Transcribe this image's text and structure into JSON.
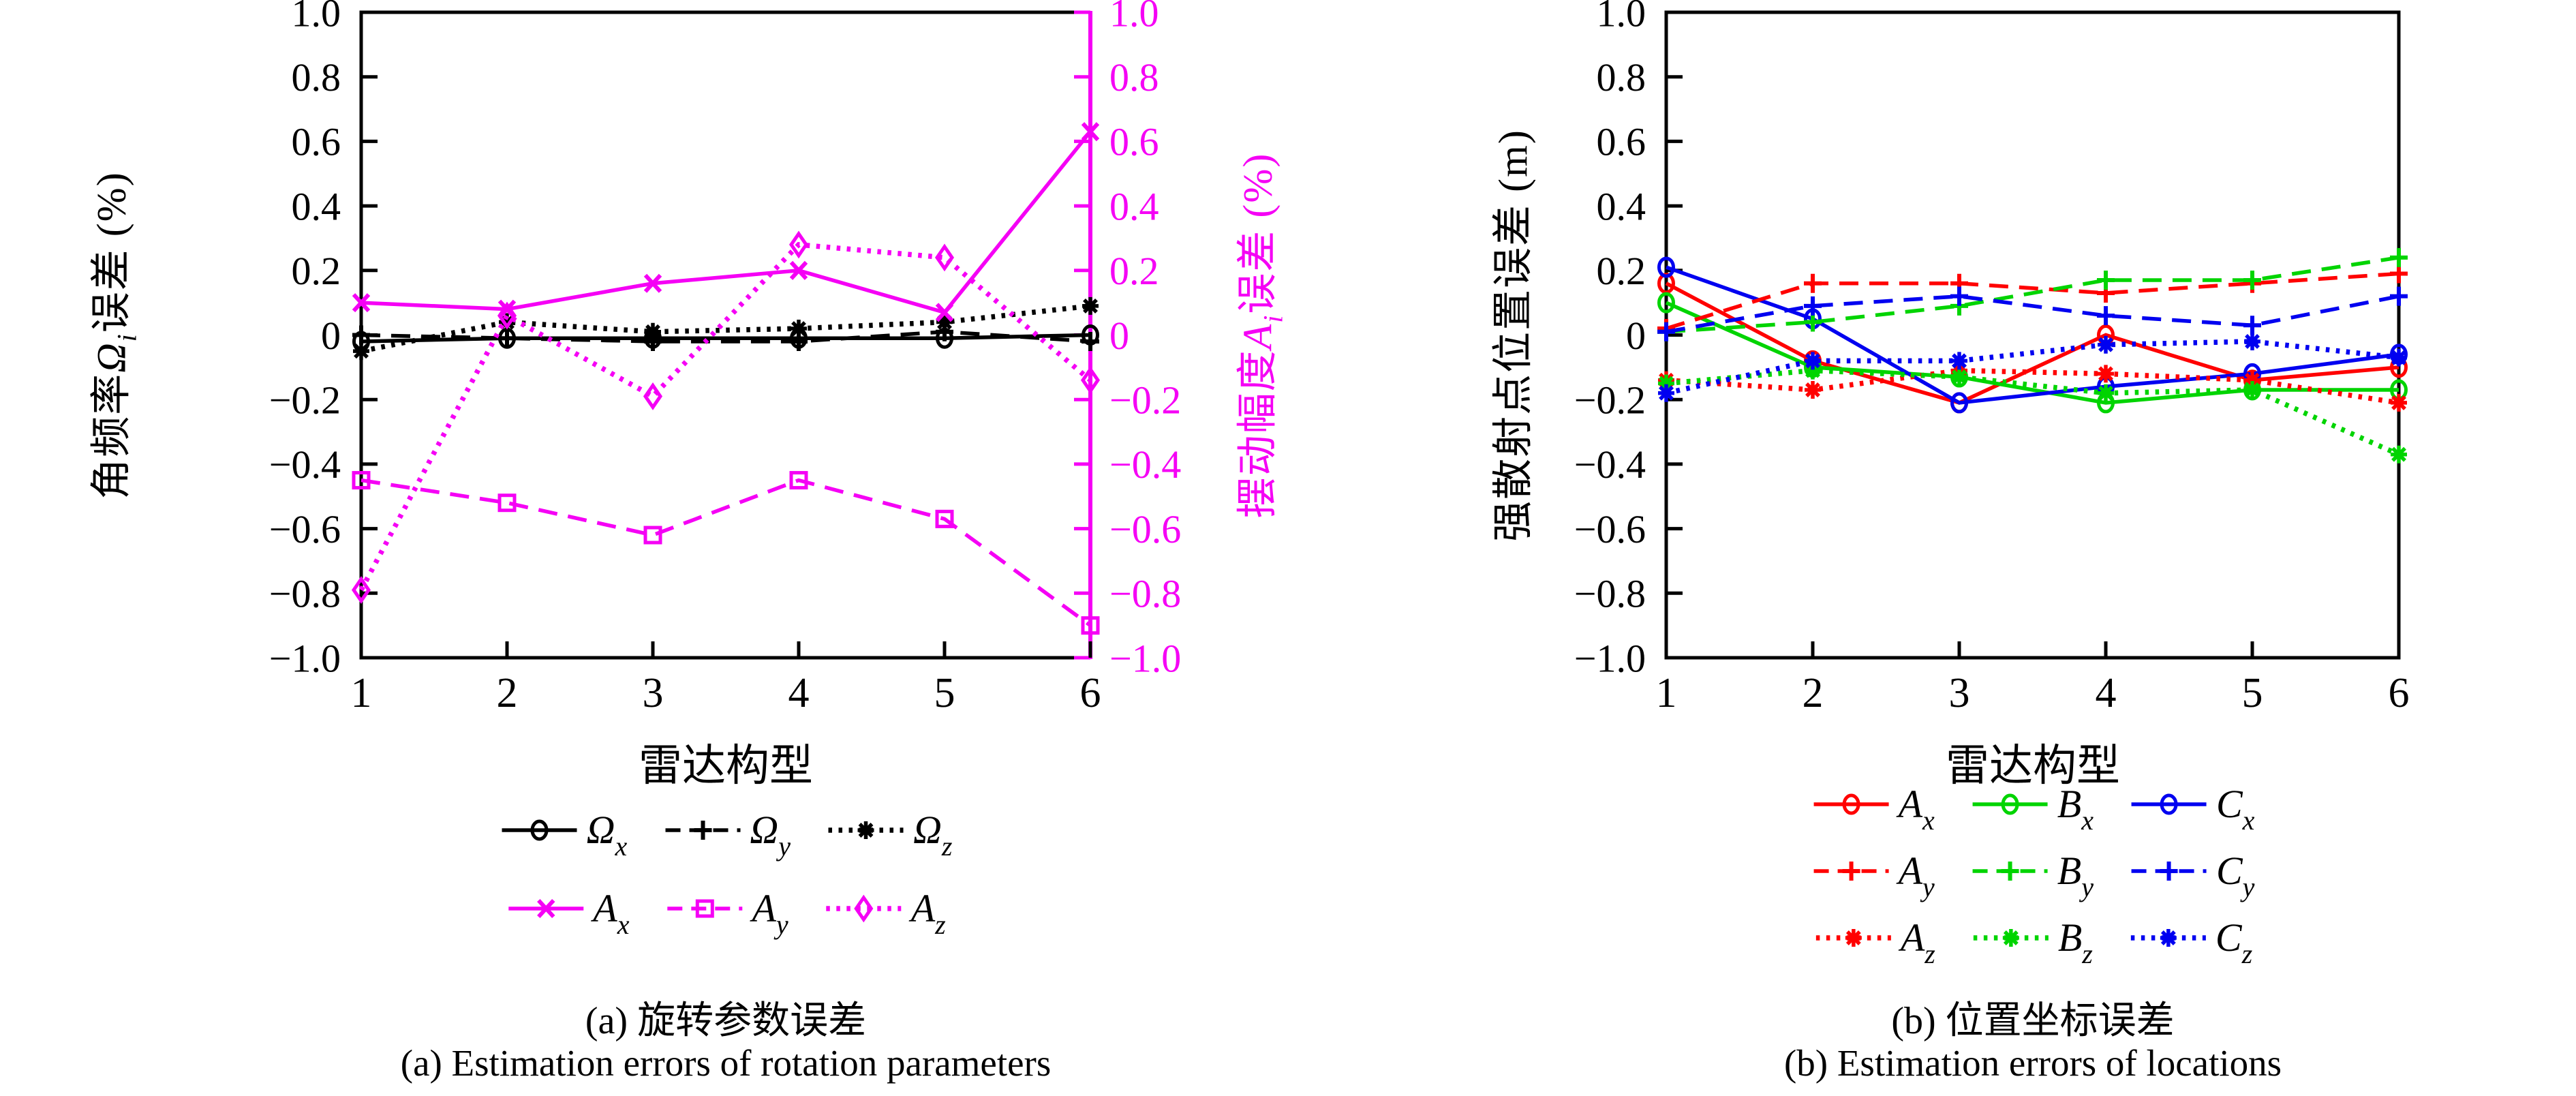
{
  "figure": {
    "background": "#ffffff",
    "captions": [
      {
        "zh": "(a) 旋转参数误差",
        "en": "(a) Estimation errors of rotation parameters"
      },
      {
        "zh": "(b) 位置坐标误差",
        "en": "(b) Estimation errors of locations"
      }
    ]
  },
  "colors": {
    "black": "#000000",
    "magenta": "#f500f5",
    "red": "#ff0000",
    "green": "#00d400",
    "blue": "#0000f0"
  },
  "chart_data": [
    {
      "type": "line",
      "x": [
        1,
        2,
        3,
        4,
        5,
        6
      ],
      "xlabel": "雷达构型",
      "ylabel": "角频率Ω_i误差 (%)",
      "ylabel_right": "摆动幅度A_i误差 (%)",
      "ylabel_parts": {
        "prefix": "角频率",
        "sym": "Ω",
        "sub": "i",
        "suffix": "误差 (%)"
      },
      "ylabel_right_parts": {
        "prefix": "摆动幅度",
        "sym": "A",
        "sub": "i",
        "suffix": "误差 (%)"
      },
      "ylim": [
        -1.0,
        1.0
      ],
      "ylim_right": [
        -1.0,
        1.0
      ],
      "grid": false,
      "legend_position": "below",
      "yticks": [
        {
          "v": 1.0,
          "label": "1.0"
        },
        {
          "v": 0.8,
          "label": "0.8"
        },
        {
          "v": 0.6,
          "label": "0.6"
        },
        {
          "v": 0.4,
          "label": "0.4"
        },
        {
          "v": 0.2,
          "label": "0.2"
        },
        {
          "v": 0.0,
          "label": "0"
        },
        {
          "v": -0.2,
          "label": "−0.2"
        },
        {
          "v": -0.4,
          "label": "−0.4"
        },
        {
          "v": -0.6,
          "label": "−0.6"
        },
        {
          "v": -0.8,
          "label": "−0.8"
        },
        {
          "v": -1.0,
          "label": "−1.0"
        }
      ],
      "xticks": [
        {
          "v": 1,
          "label": "1"
        },
        {
          "v": 2,
          "label": "2"
        },
        {
          "v": 3,
          "label": "3"
        },
        {
          "v": 4,
          "label": "4"
        },
        {
          "v": 5,
          "label": "5"
        },
        {
          "v": 6,
          "label": "6"
        }
      ],
      "series": [
        {
          "name": {
            "sym": "Ω",
            "sub": "x"
          },
          "color": "#000000",
          "line": "solid",
          "marker": "circle",
          "axis": "left",
          "values": [
            -0.02,
            -0.01,
            -0.01,
            -0.01,
            -0.01,
            0.0
          ]
        },
        {
          "name": {
            "sym": "Ω",
            "sub": "y"
          },
          "color": "#000000",
          "line": "dashed",
          "marker": "plus",
          "axis": "left",
          "values": [
            0.0,
            -0.01,
            -0.02,
            -0.02,
            0.01,
            -0.02
          ]
        },
        {
          "name": {
            "sym": "Ω",
            "sub": "z"
          },
          "color": "#000000",
          "line": "dotted",
          "marker": "asterisk",
          "axis": "left",
          "values": [
            -0.05,
            0.04,
            0.01,
            0.02,
            0.04,
            0.09
          ]
        },
        {
          "name": {
            "sym": "A",
            "sub": "x"
          },
          "color": "#f500f5",
          "line": "solid",
          "marker": "x",
          "axis": "right",
          "values": [
            0.1,
            0.08,
            0.16,
            0.2,
            0.07,
            0.63
          ]
        },
        {
          "name": {
            "sym": "A",
            "sub": "y"
          },
          "color": "#f500f5",
          "line": "dashed",
          "marker": "square",
          "axis": "right",
          "values": [
            -0.45,
            -0.52,
            -0.62,
            -0.45,
            -0.57,
            -0.9
          ]
        },
        {
          "name": {
            "sym": "A",
            "sub": "z"
          },
          "color": "#f500f5",
          "line": "dotted",
          "marker": "diamond",
          "axis": "right",
          "values": [
            -0.79,
            0.06,
            -0.19,
            0.28,
            0.24,
            -0.14
          ]
        }
      ],
      "legend_rows": [
        [
          0,
          1,
          2
        ],
        [
          3,
          4,
          5
        ]
      ]
    },
    {
      "type": "line",
      "x": [
        1,
        2,
        3,
        4,
        5,
        6
      ],
      "xlabel": "雷达构型",
      "ylabel": "强散射点位置误差 (m)",
      "ylabel_parts": {
        "prefix": "强散射点位置误差 (m)",
        "sym": "",
        "sub": "",
        "suffix": ""
      },
      "ylim": [
        -1.0,
        1.0
      ],
      "grid": false,
      "legend_position": "below",
      "yticks": [
        {
          "v": 1.0,
          "label": "1.0"
        },
        {
          "v": 0.8,
          "label": "0.8"
        },
        {
          "v": 0.6,
          "label": "0.6"
        },
        {
          "v": 0.4,
          "label": "0.4"
        },
        {
          "v": 0.2,
          "label": "0.2"
        },
        {
          "v": 0.0,
          "label": "0"
        },
        {
          "v": -0.2,
          "label": "−0.2"
        },
        {
          "v": -0.4,
          "label": "−0.4"
        },
        {
          "v": -0.6,
          "label": "−0.6"
        },
        {
          "v": -0.8,
          "label": "−0.8"
        },
        {
          "v": -1.0,
          "label": "−1.0"
        }
      ],
      "xticks": [
        {
          "v": 1,
          "label": "1"
        },
        {
          "v": 2,
          "label": "2"
        },
        {
          "v": 3,
          "label": "3"
        },
        {
          "v": 4,
          "label": "4"
        },
        {
          "v": 5,
          "label": "5"
        },
        {
          "v": 6,
          "label": "6"
        }
      ],
      "series": [
        {
          "name": {
            "sym": "A",
            "sub": "x"
          },
          "color": "#ff0000",
          "line": "solid",
          "marker": "circle",
          "axis": "left",
          "values": [
            0.16,
            -0.08,
            -0.21,
            0.0,
            -0.14,
            -0.1
          ]
        },
        {
          "name": {
            "sym": "B",
            "sub": "x"
          },
          "color": "#00d400",
          "line": "solid",
          "marker": "circle",
          "axis": "left",
          "values": [
            0.1,
            -0.1,
            -0.13,
            -0.21,
            -0.17,
            -0.17
          ]
        },
        {
          "name": {
            "sym": "C",
            "sub": "x"
          },
          "color": "#0000f0",
          "line": "solid",
          "marker": "circle",
          "axis": "left",
          "values": [
            0.21,
            0.05,
            -0.21,
            -0.16,
            -0.12,
            -0.06
          ]
        },
        {
          "name": {
            "sym": "A",
            "sub": "y"
          },
          "color": "#ff0000",
          "line": "dashed",
          "marker": "plus",
          "axis": "left",
          "values": [
            0.02,
            0.16,
            0.16,
            0.13,
            0.16,
            0.19
          ]
        },
        {
          "name": {
            "sym": "B",
            "sub": "y"
          },
          "color": "#00d400",
          "line": "dashed",
          "marker": "plus",
          "axis": "left",
          "values": [
            0.01,
            0.04,
            0.09,
            0.17,
            0.17,
            0.24
          ]
        },
        {
          "name": {
            "sym": "C",
            "sub": "y"
          },
          "color": "#0000f0",
          "line": "dashed",
          "marker": "plus",
          "axis": "left",
          "values": [
            0.01,
            0.09,
            0.12,
            0.06,
            0.03,
            0.12
          ]
        },
        {
          "name": {
            "sym": "A",
            "sub": "z"
          },
          "color": "#ff0000",
          "line": "dotted",
          "marker": "asterisk",
          "axis": "left",
          "values": [
            -0.14,
            -0.17,
            -0.11,
            -0.12,
            -0.14,
            -0.21
          ]
        },
        {
          "name": {
            "sym": "B",
            "sub": "z"
          },
          "color": "#00d400",
          "line": "dotted",
          "marker": "asterisk",
          "axis": "left",
          "values": [
            -0.15,
            -0.11,
            -0.13,
            -0.18,
            -0.17,
            -0.37
          ]
        },
        {
          "name": {
            "sym": "C",
            "sub": "z"
          },
          "color": "#0000f0",
          "line": "dotted",
          "marker": "asterisk",
          "axis": "left",
          "values": [
            -0.18,
            -0.08,
            -0.08,
            -0.03,
            -0.02,
            -0.07
          ]
        }
      ],
      "legend_rows": [
        [
          0,
          1,
          2
        ],
        [
          3,
          4,
          5
        ],
        [
          6,
          7,
          8
        ]
      ]
    }
  ]
}
